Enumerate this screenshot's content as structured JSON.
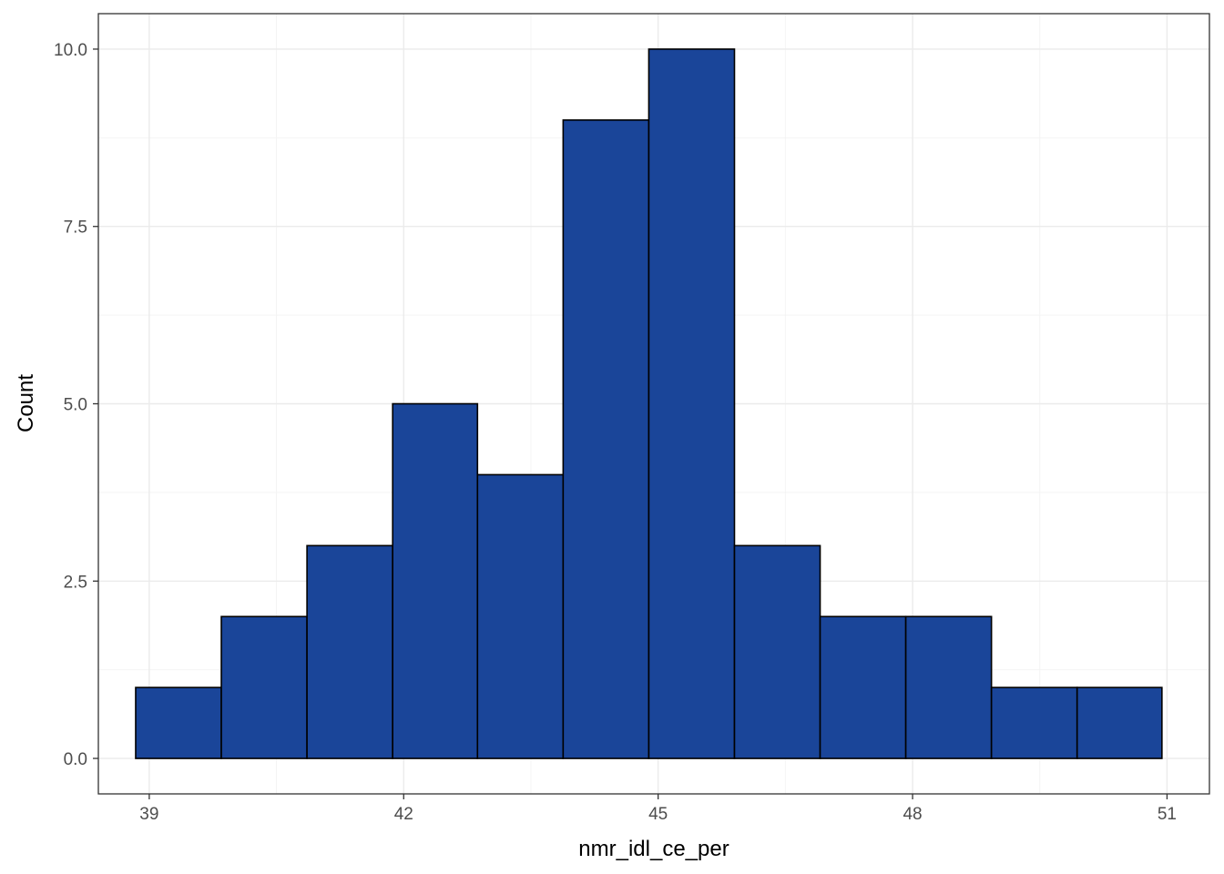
{
  "chart_data": {
    "type": "bar",
    "subtype": "histogram",
    "title": "",
    "xlabel": "nmr_idl_ce_per",
    "ylabel": "Count",
    "xlim": [
      38.4,
      51.5
    ],
    "ylim": [
      -0.5,
      10.5
    ],
    "x_ticks": [
      39,
      42,
      45,
      48,
      51
    ],
    "x_tick_labels": [
      "39",
      "42",
      "45",
      "48",
      "51"
    ],
    "y_ticks": [
      0,
      2.5,
      5,
      7.5,
      10
    ],
    "y_tick_labels": [
      "0.0",
      "2.5",
      "5.0",
      "7.5",
      "10.0"
    ],
    "grid": true,
    "legend": "none",
    "bins": [
      {
        "x0": 38.84,
        "x1": 39.85,
        "count": 1
      },
      {
        "x0": 39.85,
        "x1": 40.86,
        "count": 2
      },
      {
        "x0": 40.86,
        "x1": 41.87,
        "count": 3
      },
      {
        "x0": 41.87,
        "x1": 42.87,
        "count": 5
      },
      {
        "x0": 42.87,
        "x1": 43.88,
        "count": 4
      },
      {
        "x0": 43.88,
        "x1": 44.89,
        "count": 9
      },
      {
        "x0": 44.89,
        "x1": 45.9,
        "count": 10
      },
      {
        "x0": 45.9,
        "x1": 46.91,
        "count": 3
      },
      {
        "x0": 46.91,
        "x1": 47.92,
        "count": 2
      },
      {
        "x0": 47.92,
        "x1": 48.93,
        "count": 2
      },
      {
        "x0": 48.93,
        "x1": 49.94,
        "count": 1
      },
      {
        "x0": 49.94,
        "x1": 50.94,
        "count": 1
      }
    ],
    "colors": {
      "bar_fill": "#1a4599",
      "bar_stroke": "#000000",
      "grid_major": "#ebebeb",
      "grid_minor": "#f4f4f4",
      "panel_border": "#333333",
      "tick_text": "#4d4d4d",
      "title_text": "#000000"
    }
  }
}
